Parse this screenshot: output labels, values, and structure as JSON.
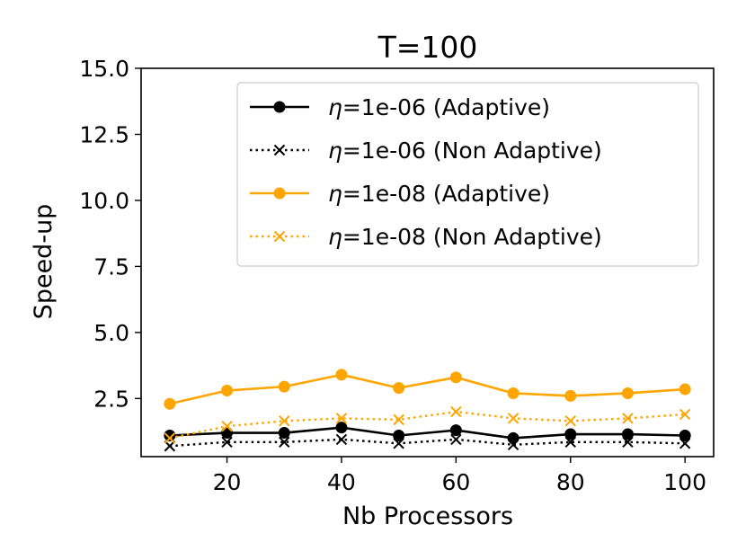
{
  "chart_data": {
    "type": "line",
    "title": "T=100",
    "xlabel": "Nb Processors",
    "ylabel": "Speed-up",
    "xlim": [
      5,
      105
    ],
    "ylim": [
      0.3,
      15.0
    ],
    "xticks": [
      20,
      40,
      60,
      80,
      100
    ],
    "xtick_labels": [
      "20",
      "40",
      "60",
      "80",
      "100"
    ],
    "yticks": [
      2.5,
      5.0,
      7.5,
      10.0,
      12.5,
      15.0
    ],
    "ytick_labels": [
      "2.5",
      "5.0",
      "7.5",
      "10.0",
      "12.5",
      "15.0"
    ],
    "legend_position": "top-right",
    "x": [
      10,
      20,
      30,
      40,
      50,
      60,
      70,
      80,
      90,
      100
    ],
    "series": [
      {
        "name": "η=1e-06 (Adaptive)",
        "eta": "η",
        "label_rest": "=1e-06 (Adaptive)",
        "color": "#000000",
        "style": "solid",
        "marker": "circle",
        "values": [
          1.1,
          1.2,
          1.2,
          1.4,
          1.1,
          1.3,
          1.0,
          1.15,
          1.15,
          1.1
        ]
      },
      {
        "name": "η=1e-06 (Non Adaptive)",
        "eta": "η",
        "label_rest": "=1e-06 (Non Adaptive)",
        "color": "#000000",
        "style": "dotted",
        "marker": "x",
        "values": [
          0.7,
          0.85,
          0.85,
          0.95,
          0.8,
          0.95,
          0.75,
          0.85,
          0.85,
          0.8
        ]
      },
      {
        "name": "η=1e-08 (Adaptive)",
        "eta": "η",
        "label_rest": "=1e-08 (Adaptive)",
        "color": "#FFA500",
        "style": "solid",
        "marker": "circle",
        "values": [
          2.3,
          2.8,
          2.95,
          3.4,
          2.9,
          3.3,
          2.7,
          2.6,
          2.7,
          2.85
        ]
      },
      {
        "name": "η=1e-08 (Non Adaptive)",
        "eta": "η",
        "label_rest": "=1e-08 (Non Adaptive)",
        "color": "#FFA500",
        "style": "dotted",
        "marker": "x",
        "values": [
          1.0,
          1.45,
          1.65,
          1.75,
          1.7,
          2.0,
          1.75,
          1.65,
          1.75,
          1.9
        ]
      }
    ]
  }
}
